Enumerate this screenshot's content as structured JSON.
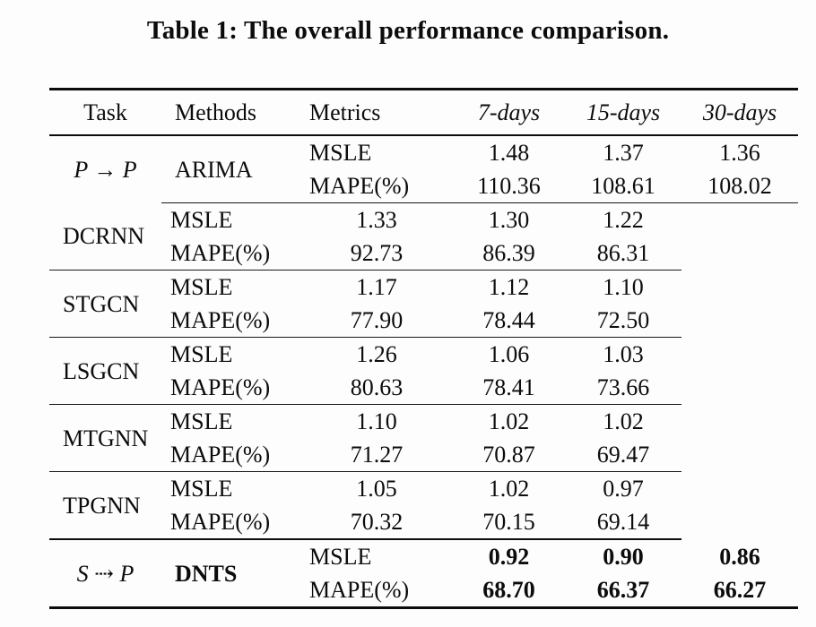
{
  "caption": "Table 1: The overall performance comparison.",
  "header": {
    "task": "Task",
    "methods": "Methods",
    "metrics": "Metrics",
    "cols": [
      "7-days",
      "15-days",
      "30-days"
    ]
  },
  "metric_labels": {
    "msle": "MSLE",
    "mape": "MAPE(%)"
  },
  "tasks": {
    "pp": "P → P",
    "sp": "S ⇢ P"
  },
  "chart_data": {
    "type": "table",
    "title": "Table 1: The overall performance comparison.",
    "columns": [
      "Task",
      "Methods",
      "Metrics",
      "7-days",
      "15-days",
      "30-days"
    ],
    "groups": [
      {
        "task": "P → P",
        "method": "ARIMA",
        "msle": [
          "1.48",
          "1.37",
          "1.36"
        ],
        "mape": [
          "110.36",
          "108.61",
          "108.02"
        ]
      },
      {
        "task": "P → P",
        "method": "DCRNN",
        "msle": [
          "1.33",
          "1.30",
          "1.22"
        ],
        "mape": [
          "92.73",
          "86.39",
          "86.31"
        ]
      },
      {
        "task": "P → P",
        "method": "STGCN",
        "msle": [
          "1.17",
          "1.12",
          "1.10"
        ],
        "mape": [
          "77.90",
          "78.44",
          "72.50"
        ]
      },
      {
        "task": "P → P",
        "method": "LSGCN",
        "msle": [
          "1.26",
          "1.06",
          "1.03"
        ],
        "mape": [
          "80.63",
          "78.41",
          "73.66"
        ]
      },
      {
        "task": "P → P",
        "method": "MTGNN",
        "msle": [
          "1.10",
          "1.02",
          "1.02"
        ],
        "mape": [
          "71.27",
          "70.87",
          "69.47"
        ]
      },
      {
        "task": "P → P",
        "method": "TPGNN",
        "msle": [
          "1.05",
          "1.02",
          "0.97"
        ],
        "mape": [
          "70.32",
          "70.15",
          "69.14"
        ]
      },
      {
        "task": "S ⇢ P",
        "method": "DNTS",
        "msle": [
          "0.92",
          "0.90",
          "0.86"
        ],
        "mape": [
          "68.70",
          "66.37",
          "66.27"
        ],
        "bold": true
      }
    ]
  }
}
